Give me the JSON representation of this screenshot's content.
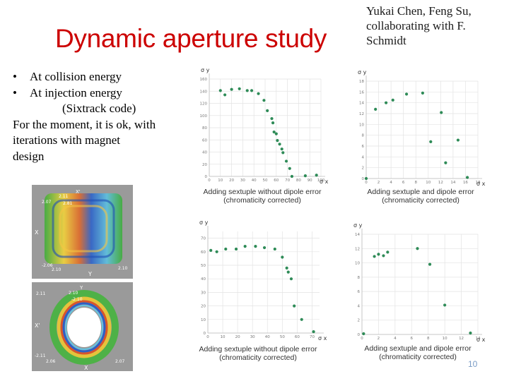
{
  "title": "Dynamic aperture study",
  "authors": "Yukai Chen, Feng Su, collaborating with F. Schmidt",
  "bullets": [
    {
      "marker": "•",
      "text": "At collision energy"
    },
    {
      "marker": "•",
      "text": "At injection energy"
    }
  ],
  "body_lines": [
    "(Sixtrack code)",
    "For the moment, it is ok, with",
    "iterations with magnet",
    "design"
  ],
  "sim_images": [
    {
      "labels": {
        "axis_y": "X'",
        "axis_x_left": "X",
        "axis_x_bottom": "Y",
        "v_top": "2.11",
        "v_top2": "2.07",
        "v_right": "2.81",
        "v_bot": "-2.06",
        "v_bot2": "2.10",
        "v_br": "2.10"
      }
    },
    {
      "labels": {
        "axis_y": "Y",
        "axis_x_left": "X'",
        "axis_x_bottom": "X",
        "v_top": "2.10",
        "v_top2": "2.11",
        "v_right": "-2.10",
        "v_bot": "-2.11",
        "v_bot2": "2.06",
        "v_br": "2.07"
      }
    }
  ],
  "chart_data": [
    {
      "type": "scatter",
      "title": "",
      "xlabel": "σ x",
      "ylabel": "σ y",
      "caption": [
        "Adding sextuple without dipole error",
        "(chromaticity corrected)"
      ],
      "xlim": [
        0,
        100
      ],
      "ylim": [
        0,
        160
      ],
      "xticks": [
        0,
        10,
        20,
        30,
        40,
        50,
        60,
        70,
        80,
        90,
        100
      ],
      "yticks": [
        0,
        20,
        40,
        60,
        80,
        100,
        120,
        140,
        160
      ],
      "x": [
        10,
        14,
        20,
        27,
        34,
        38,
        44,
        49,
        52,
        56,
        57,
        58,
        60,
        61,
        63,
        65,
        66,
        69,
        72,
        74,
        86,
        96
      ],
      "y": [
        141,
        134,
        143,
        144,
        141,
        141,
        136,
        125,
        108,
        95,
        88,
        73,
        70,
        59,
        53,
        45,
        39,
        25,
        13,
        0,
        1,
        2
      ]
    },
    {
      "type": "scatter",
      "title": "",
      "xlabel": "σ x",
      "ylabel": "σ y",
      "caption": [
        "Adding sextuple and dipole error",
        "(chromaticity corrected)"
      ],
      "xlim": [
        0,
        18
      ],
      "ylim": [
        0,
        18
      ],
      "xticks": [
        0,
        2,
        4,
        6,
        8,
        10,
        12,
        14,
        16,
        18
      ],
      "yticks": [
        0,
        2,
        4,
        6,
        8,
        10,
        12,
        14,
        16,
        18
      ],
      "x": [
        0,
        1.5,
        3.2,
        4.3,
        6.5,
        9.1,
        10.4,
        12.1,
        12.8,
        14.8,
        16.3
      ],
      "y": [
        0,
        12.8,
        14,
        14.5,
        15.6,
        15.8,
        6.8,
        12.2,
        2.9,
        7.1,
        0.2
      ]
    },
    {
      "type": "scatter",
      "title": "",
      "xlabel": "σ x",
      "ylabel": "σ y",
      "caption": [
        "Adding sextuple without dipole error",
        "(chromaticity corrected)"
      ],
      "xlim": [
        0,
        75
      ],
      "ylim": [
        0,
        75
      ],
      "xticks": [
        0,
        10,
        20,
        30,
        40,
        50,
        60,
        70
      ],
      "yticks": [
        0,
        10,
        20,
        30,
        40,
        50,
        60,
        70
      ],
      "x": [
        2,
        6,
        12,
        19,
        25,
        32,
        38,
        45,
        50,
        53,
        54,
        56,
        58,
        63,
        71
      ],
      "y": [
        61,
        60,
        62,
        62,
        64,
        64,
        63,
        62,
        56,
        48,
        45,
        40,
        20,
        10,
        1
      ]
    },
    {
      "type": "scatter",
      "title": "",
      "xlabel": "σ x",
      "ylabel": "σ y",
      "caption": [
        "Adding sextuple and dipole error",
        "(chromaticity corrected)"
      ],
      "xlim": [
        0,
        14
      ],
      "ylim": [
        0,
        14
      ],
      "xticks": [
        0,
        2,
        4,
        6,
        8,
        10,
        12,
        14
      ],
      "yticks": [
        0,
        2,
        4,
        6,
        8,
        10,
        12,
        14
      ],
      "x": [
        0.2,
        1.5,
        2.0,
        2.6,
        3.1,
        6.7,
        8.2,
        10.0,
        13.1
      ],
      "y": [
        0.1,
        10.9,
        11.2,
        11.0,
        11.5,
        12.0,
        9.8,
        4.1,
        0.2
      ]
    }
  ],
  "page_number": "10"
}
